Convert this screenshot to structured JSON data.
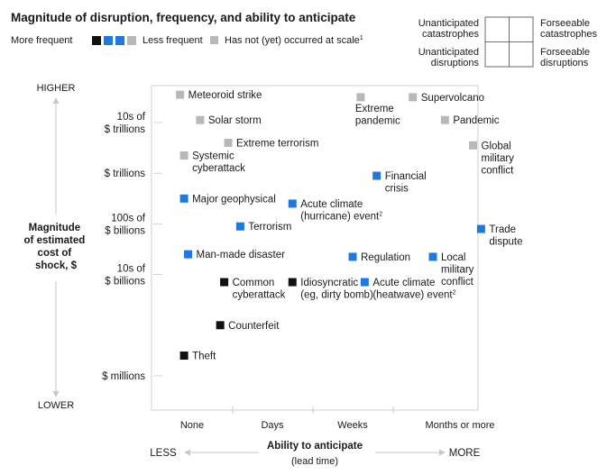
{
  "title": "Magnitude of disruption, frequency, and ability to anticipate",
  "legend": {
    "more_frequent": "More frequent",
    "less_frequent": "Less frequent",
    "not_occurred": "Has not (yet) occurred at scale",
    "not_occurred_sup": "1",
    "frequency_colors": [
      "#111111",
      "#1f77e0",
      "#1f77e0",
      "#b8b8b8"
    ],
    "quadrant": {
      "top_left": [
        "Unanticipated",
        "catastrophes"
      ],
      "top_right": [
        "Forseeable",
        "catastrophes"
      ],
      "bottom_left": [
        "Unanticipated",
        "disruptions"
      ],
      "bottom_right": [
        "Forseeable",
        "disruptions"
      ]
    }
  },
  "colors": {
    "black": "#111111",
    "blue": "#1f77e0",
    "gray": "#b8b8b8"
  },
  "chart_data": {
    "type": "scatter",
    "title": "Magnitude of disruption, frequency, and ability to anticipate",
    "xlabel": "Ability to anticipate",
    "xlabel_sub": "(lead time)",
    "x_less": "LESS",
    "x_more": "MORE",
    "x_ticks": [
      "None",
      "Days",
      "Weeks",
      "Months or more"
    ],
    "ylabel": [
      "Magnitude",
      "of estimated",
      "cost of",
      "shock, $"
    ],
    "y_higher": "HIGHER",
    "y_lower": "LOWER",
    "y_ticks": [
      {
        "label": [
          "10s of",
          "$ trillions"
        ],
        "value": 6
      },
      {
        "label": [
          "$ trillions"
        ],
        "value": 5
      },
      {
        "label": [
          "100s of",
          "$ billions"
        ],
        "value": 4
      },
      {
        "label": [
          "10s of",
          "$ billions"
        ],
        "value": 3
      },
      {
        "label": [
          "$ millions"
        ],
        "value": 1
      }
    ],
    "xlim": [
      -0.2,
      3.85
    ],
    "ylim": [
      0.65,
      6.75
    ],
    "points": [
      {
        "label": [
          "Meteoroid strike"
        ],
        "x": -0.15,
        "y": 6.55,
        "color": "gray"
      },
      {
        "label": [
          "Solar storm"
        ],
        "x": 0.1,
        "y": 6.05,
        "color": "gray"
      },
      {
        "label": [
          "Extreme terrorism"
        ],
        "x": 0.45,
        "y": 5.6,
        "color": "gray"
      },
      {
        "label": [
          "Systemic",
          "cyberattack"
        ],
        "x": -0.1,
        "y": 5.35,
        "color": "gray"
      },
      {
        "label": [
          "Extreme",
          "pandemic"
        ],
        "x": 2.1,
        "y": 6.5,
        "color": "gray",
        "label_pos": "below"
      },
      {
        "label": [
          "Supervolcano"
        ],
        "x": 2.75,
        "y": 6.5,
        "color": "gray"
      },
      {
        "label": [
          "Pandemic"
        ],
        "x": 3.15,
        "y": 6.05,
        "color": "gray"
      },
      {
        "label": [
          "Global",
          "military",
          "conflict"
        ],
        "x": 3.5,
        "y": 5.55,
        "color": "gray"
      },
      {
        "label": [
          "Financial",
          "crisis"
        ],
        "x": 2.3,
        "y": 4.95,
        "color": "blue"
      },
      {
        "label": [
          "Major geophysical"
        ],
        "x": -0.1,
        "y": 4.5,
        "color": "blue"
      },
      {
        "label": [
          "Acute climate",
          "(hurricane) event"
        ],
        "x": 1.25,
        "y": 4.4,
        "color": "blue",
        "sup": "2"
      },
      {
        "label": [
          "Terrorism"
        ],
        "x": 0.6,
        "y": 3.95,
        "color": "blue"
      },
      {
        "label": [
          "Trade",
          "dispute"
        ],
        "x": 3.6,
        "y": 3.9,
        "color": "blue"
      },
      {
        "label": [
          "Man-made disaster"
        ],
        "x": -0.05,
        "y": 3.4,
        "color": "blue"
      },
      {
        "label": [
          "Regulation"
        ],
        "x": 2.0,
        "y": 3.35,
        "color": "blue"
      },
      {
        "label": [
          "Local",
          "military",
          "conflict"
        ],
        "x": 3.0,
        "y": 3.35,
        "color": "blue"
      },
      {
        "label": [
          "Common",
          "cyberattack"
        ],
        "x": 0.4,
        "y": 2.85,
        "color": "black"
      },
      {
        "label": [
          "Idiosyncratic",
          "(eg, dirty bomb)"
        ],
        "x": 1.25,
        "y": 2.85,
        "color": "black"
      },
      {
        "label": [
          "Acute climate",
          "(heatwave) event"
        ],
        "x": 2.15,
        "y": 2.85,
        "color": "blue",
        "sup": "2"
      },
      {
        "label": [
          "Counterfeit"
        ],
        "x": 0.35,
        "y": 2.0,
        "color": "black"
      },
      {
        "label": [
          "Theft"
        ],
        "x": -0.1,
        "y": 1.4,
        "color": "black"
      }
    ]
  }
}
